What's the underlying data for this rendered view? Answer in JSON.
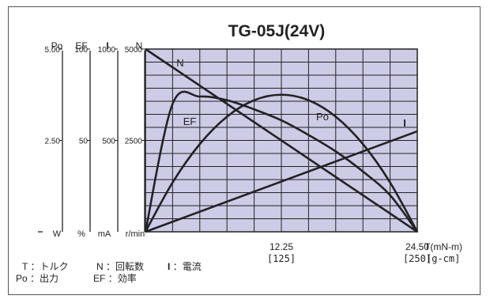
{
  "chart_data": {
    "type": "line",
    "title": "TG-05J(24V)",
    "x": [
      0,
      2.45,
      4.9,
      7.35,
      9.8,
      12.25,
      14.7,
      17.15,
      19.6,
      22.05,
      24.5
    ],
    "xlim": [
      0,
      24.5
    ],
    "x_ticks": [
      {
        "value": 12.25,
        "label": "12.25",
        "sub": "[125]"
      },
      {
        "value": 24.5,
        "label": "24.50",
        "sub": "[250]"
      }
    ],
    "x_axis_label": "T(mN-m)",
    "x_axis_sublabel": "[g-cm]",
    "grid": true,
    "grid_columns": 10,
    "grid_rows": 14,
    "plot_color": "#cccce6",
    "axes": [
      {
        "id": "Po",
        "header": "Po",
        "unit": "W",
        "ticks": [
          "5.00",
          "2.50"
        ],
        "range": [
          0,
          5
        ]
      },
      {
        "id": "EF",
        "header": "EF",
        "unit": "%",
        "ticks": [
          "100",
          "50"
        ],
        "range": [
          0,
          100
        ]
      },
      {
        "id": "I",
        "header": "I",
        "unit": "mA",
        "ticks": [
          "1000",
          "500"
        ],
        "range": [
          0,
          1000
        ]
      },
      {
        "id": "N",
        "header": "N",
        "unit": "r/min",
        "ticks": [
          "5000",
          "2500"
        ],
        "range": [
          0,
          5000
        ]
      }
    ],
    "series": [
      {
        "name": "N",
        "axis": "N",
        "values": [
          5000,
          4500,
          4000,
          3500,
          3000,
          2500,
          2000,
          1500,
          1000,
          500,
          0
        ]
      },
      {
        "name": "I",
        "axis": "I",
        "values": [
          0,
          55,
          110,
          165,
          220,
          275,
          330,
          385,
          440,
          495,
          550
        ]
      },
      {
        "name": "Po",
        "axis": "Po",
        "values": [
          0,
          1.35,
          2.4,
          3.15,
          3.6,
          3.75,
          3.6,
          3.15,
          2.4,
          1.35,
          0
        ]
      },
      {
        "name": "EF",
        "axis": "EF",
        "values": [
          0,
          70,
          74,
          72,
          67,
          61,
          53,
          44,
          33,
          20,
          0
        ]
      }
    ],
    "legend_lines": [
      [
        {
          "key": "T",
          "sep": "：",
          "val": "トルク"
        },
        {
          "key": "N",
          "sep": "：",
          "val": "回転数"
        },
        {
          "key": "I",
          "sep": "：",
          "val": "電流"
        }
      ],
      [
        {
          "key": "Po",
          "sep": "：",
          "val": "出力"
        },
        {
          "key": "EF",
          "sep": "：",
          "val": "効率"
        }
      ]
    ]
  }
}
